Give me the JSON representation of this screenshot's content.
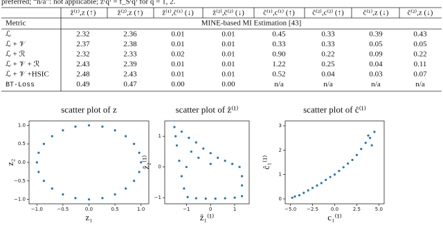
{
  "caption": "preferred; “n/a”: not applicable; z⁽q⁾ = f_S⁽q⁾ for q = 1, 2.",
  "table": {
    "header": [
      "",
      "ẑ⁽¹⁾,z (↑)",
      "ẑ⁽²⁾,z (↑)",
      "ẑ⁽¹⁾,ĉ⁽¹⁾ (↓)",
      "ẑ⁽²⁾,ĉ⁽²⁾ (↓)",
      "ĉ⁽¹⁾,c⁽¹⁾ (↑)",
      "ĉ⁽²⁾,c⁽²⁾ (↑)",
      "ĉ⁽¹⁾,z (↓)",
      "ĉ⁽²⁾,z (↓)"
    ],
    "group_header": [
      "Metric",
      "MINE-based MI Estimation [43]"
    ],
    "rows": [
      [
        "ℒ",
        "2.32",
        "2.36",
        "0.01",
        "0.01",
        "0.45",
        "0.33",
        "0.39",
        "0.43"
      ],
      [
        "ℒ + 𝒱",
        "2.37",
        "2.38",
        "0.01",
        "0.01",
        "0.33",
        "0.33",
        "0.05",
        "0.05"
      ],
      [
        "ℒ + ℛ",
        "2.32",
        "2.33",
        "0.02",
        "0.01",
        "0.90",
        "0.22",
        "0.09",
        "0.22"
      ],
      [
        "ℒ + 𝒱 + ℛ",
        "2.43",
        "2.39",
        "0.01",
        "0.01",
        "1.22",
        "0.25",
        "0.04",
        "0.11"
      ],
      [
        "ℒ + 𝒱 +HSIC",
        "2.48",
        "2.43",
        "0.01",
        "0.01",
        "0.52",
        "0.04",
        "0.03",
        "0.07"
      ],
      [
        "BT-Loss",
        "0.49",
        "0.47",
        "0.00",
        "0.00",
        "n/a",
        "n/a",
        "n/a",
        "n/a"
      ]
    ]
  },
  "chart_data": [
    {
      "type": "scatter",
      "title": "scatter plot of z",
      "x_label": "z₁",
      "y_label": "z₂",
      "color": "#1f77b4",
      "x": [
        1,
        0.966,
        0.866,
        0.707,
        0.5,
        0.259,
        0,
        -0.259,
        -0.5,
        -0.707,
        -0.866,
        -0.966,
        -1,
        -0.966,
        -0.866,
        -0.707,
        -0.5,
        -0.259,
        0,
        0.259,
        0.5,
        0.707,
        0.866,
        0.966
      ],
      "y": [
        0,
        0.259,
        0.5,
        0.707,
        0.866,
        0.966,
        1,
        0.966,
        0.866,
        0.707,
        0.5,
        0.259,
        0,
        -0.259,
        -0.5,
        -0.707,
        -0.866,
        -0.966,
        -1,
        -0.966,
        -0.866,
        -0.707,
        -0.5,
        -0.259
      ],
      "xlim": [
        -1.15,
        1.15
      ],
      "ylim": [
        -1.12,
        1.12
      ],
      "xticks": [
        {
          "value": -1,
          "label": "−1.0"
        },
        {
          "value": -0.5,
          "label": "−0.5"
        },
        {
          "value": 0,
          "label": "0.0"
        },
        0.5,
        {
          "value": 1,
          "label": "1.0"
        }
      ],
      "yticks": [
        {
          "value": -1,
          "label": "−1.0"
        },
        {
          "value": -0.5,
          "label": "−0.5"
        },
        {
          "value": 0,
          "label": "0.0"
        },
        0.5,
        {
          "value": 1,
          "label": "1.0"
        }
      ]
    },
    {
      "type": "scatter",
      "title": "scatter plot of ẑ⁽¹⁾",
      "x_label": "ẑ₁⁽¹⁾",
      "y_label": "ẑ₂⁽¹⁾",
      "color": "#1f77b4",
      "x": [
        -1.5,
        -1.2,
        -0.9,
        -0.6,
        -0.3,
        0,
        0.3,
        0.6,
        0.9,
        1.2,
        1.3,
        1.3,
        1.3,
        1.0,
        0.6,
        0.2,
        -0.2,
        -0.6,
        -0.95,
        -1.1,
        -1.2,
        -1.3,
        -1.4,
        -1.45,
        -0.5,
        0,
        -0.8,
        -1.0
      ],
      "y": [
        1.3,
        1.15,
        0.95,
        0.8,
        0.6,
        0.45,
        0.3,
        0.2,
        0.1,
        0.0,
        -0.3,
        -0.6,
        -0.95,
        -1.0,
        -1.02,
        -1.03,
        -1.03,
        -1.02,
        -0.98,
        -0.7,
        -0.3,
        0.2,
        0.7,
        1.0,
        0.3,
        0.1,
        0.5,
        0.0
      ],
      "xlim": [
        -1.9,
        1.6
      ],
      "ylim": [
        -1.2,
        1.5
      ],
      "xticks": [
        {
          "value": -1,
          "label": "−1"
        },
        0,
        1
      ],
      "yticks": [
        {
          "value": -1,
          "label": "−1"
        },
        0,
        1
      ]
    },
    {
      "type": "scatter",
      "title": "scatter plot of ĉ⁽¹⁾",
      "x_label": "c₁⁽¹⁾",
      "y_label": "ĉ₁⁽¹⁾",
      "color": "#1f77b4",
      "x": [
        -4.8,
        -4.5,
        -4,
        -3.5,
        -3,
        -2.5,
        -2,
        -1.5,
        -1,
        -0.5,
        0,
        0.5,
        1,
        1.5,
        2,
        2.5,
        3,
        3.5,
        4,
        4.5,
        4.2,
        3.8
      ],
      "y": [
        0.05,
        0.1,
        0.15,
        0.25,
        0.35,
        0.45,
        0.55,
        0.65,
        0.78,
        0.9,
        1.0,
        1.15,
        1.3,
        1.45,
        1.6,
        1.8,
        2.05,
        2.3,
        2.5,
        2.75,
        2.2,
        2.6
      ],
      "xlim": [
        -5.6,
        5.6
      ],
      "ylim": [
        -0.2,
        3.2
      ],
      "xticks": [
        {
          "value": -5,
          "label": "−5.0"
        },
        {
          "value": -2.5,
          "label": "−2.5"
        },
        {
          "value": 0,
          "label": "0.0"
        },
        2.5,
        {
          "value": 5,
          "label": "5.0"
        }
      ],
      "yticks": [
        0,
        1,
        2,
        3
      ]
    }
  ]
}
